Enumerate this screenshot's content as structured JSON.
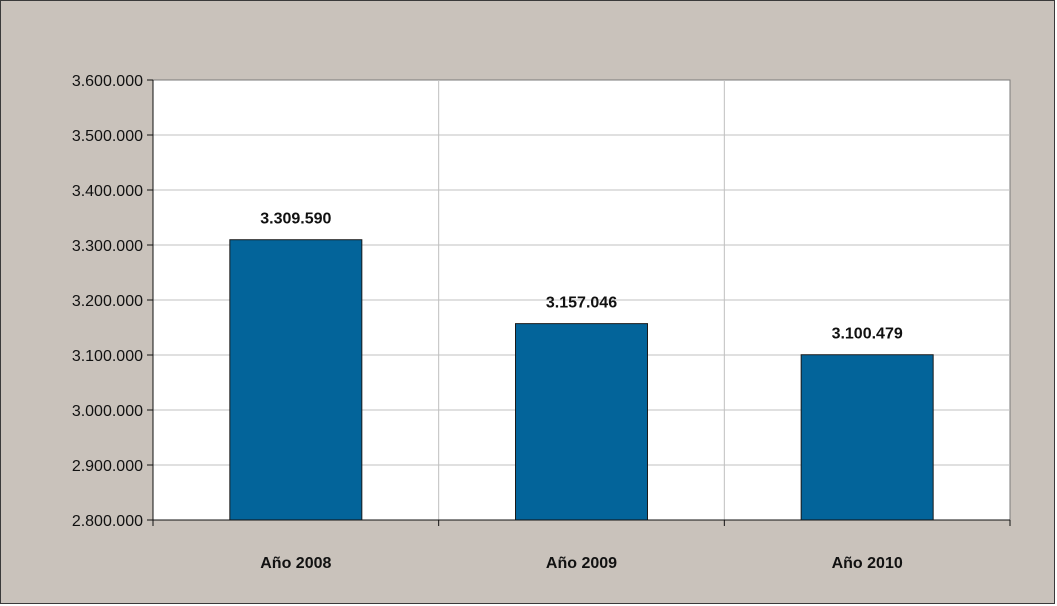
{
  "chart_data": {
    "type": "bar",
    "categories": [
      "Año 2008",
      "Año 2009",
      "Año 2010"
    ],
    "values": [
      3309590,
      3157046,
      3100479
    ],
    "data_labels": [
      "3.309.590",
      "3.157.046",
      "3.100.479"
    ],
    "title": "",
    "xlabel": "",
    "ylabel": "",
    "ylim": [
      2800000,
      3600000
    ],
    "yticks": [
      2800000,
      2900000,
      3000000,
      3100000,
      3200000,
      3300000,
      3400000,
      3500000,
      3600000
    ],
    "ytick_labels": [
      "2.800.000",
      "2.900.000",
      "3.000.000",
      "3.100.000",
      "3.200.000",
      "3.300.000",
      "3.400.000",
      "3.500.000",
      "3.600.000"
    ],
    "grid": true,
    "legend": "none",
    "colors": {
      "bar": "#03649a",
      "bar_stroke": "#1a1a1a",
      "background": "#c9c2bb",
      "plot_background": "#ffffff",
      "grid": "#c0c0c0"
    }
  }
}
